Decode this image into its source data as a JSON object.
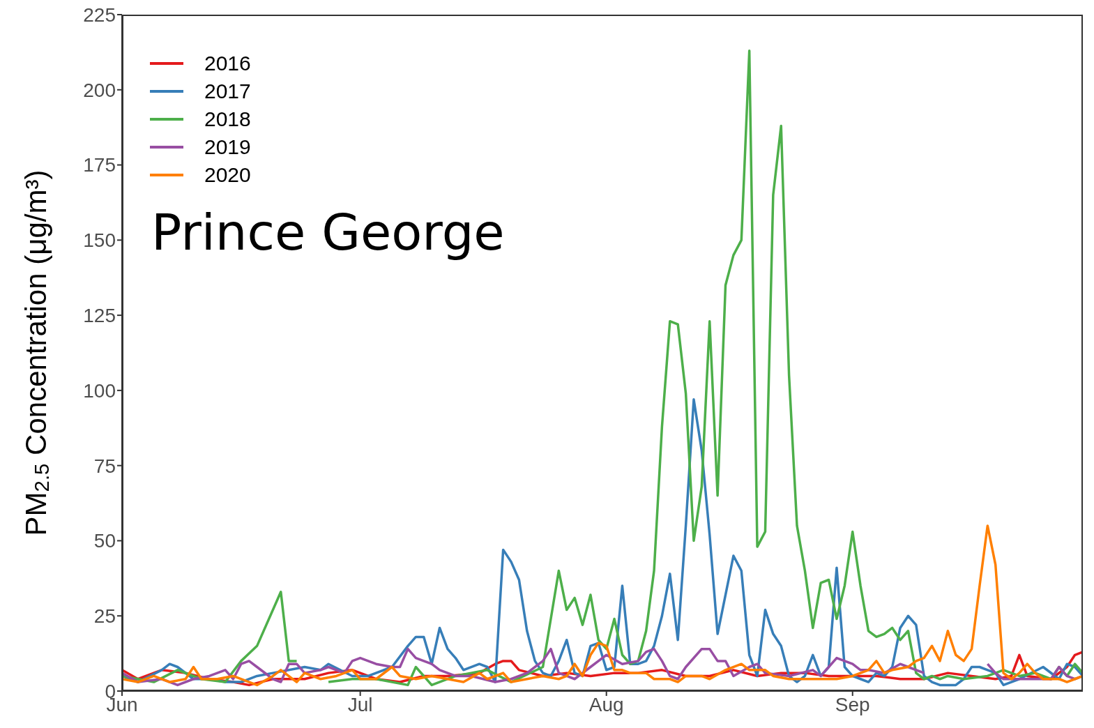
{
  "chart_data": {
    "type": "line",
    "ylabel": "PM$_{2.5}$ Concentration (μg/m³)",
    "annotations": [
      "Prince George"
    ],
    "xlim": [
      "--06-01",
      "--09-30"
    ],
    "xticks": [
      {
        "value": "--06-01",
        "label": "Jun"
      },
      {
        "value": "--07-01",
        "label": "Jul"
      },
      {
        "value": "--08-01",
        "label": "Aug"
      },
      {
        "value": "--09-01",
        "label": "Sep"
      }
    ],
    "ylim": [
      0,
      225
    ],
    "yticks": [
      0,
      25,
      50,
      75,
      100,
      125,
      150,
      175,
      200,
      225
    ],
    "grid": false,
    "legend": "top left",
    "marker": "none",
    "line_style": "solid",
    "series": [
      {
        "name": "2016",
        "color": "#e41a1c",
        "x": [
          "--06-01",
          "--06-03",
          "--06-06",
          "--06-09",
          "--06-12",
          "--06-15",
          "--06-17",
          "--06-20",
          "--06-24",
          "--06-27",
          "--06-30",
          "--07-03",
          "--07-06",
          "--07-09",
          "--07-12",
          "--07-16",
          "--07-18",
          "--07-19",
          "--07-20",
          "--07-21",
          "--07-24",
          "--07-27",
          "--07-30",
          "--08-02",
          "--08-05",
          "--08-08",
          "--08-11",
          "--08-14",
          "--08-17",
          "--08-20",
          "--08-23",
          "--08-26",
          "--08-29",
          "--09-01",
          "--09-04",
          "--09-07",
          "--09-10",
          "--09-13",
          "--09-16",
          "--09-19",
          "--09-21",
          "--09-22",
          "--09-23",
          "--09-26",
          "--09-28",
          "--09-29",
          "--09-30"
        ],
        "values": [
          7,
          4,
          7,
          6,
          4,
          3,
          2,
          4,
          4,
          6,
          7,
          4,
          3,
          5,
          5,
          6,
          9,
          10,
          10,
          7,
          5,
          6,
          5,
          6,
          6,
          7,
          5,
          5,
          7,
          5,
          6,
          6,
          5,
          5,
          5,
          4,
          4,
          6,
          5,
          4,
          5,
          12,
          5,
          4,
          8,
          12,
          13
        ]
      },
      {
        "name": "2017",
        "color": "#377eb8",
        "x": [
          "--06-01",
          "--06-03",
          "--06-06",
          "--06-07",
          "--06-08",
          "--06-10",
          "--06-12",
          "--06-14",
          "--06-16",
          "--06-18",
          "--06-20",
          "--06-24",
          "--06-26",
          "--06-27",
          "--06-30",
          "--07-02",
          "--07-05",
          "--07-07",
          "--07-08",
          "--07-09",
          "--07-10",
          "--07-11",
          "--07-12",
          "--07-13",
          "--07-14",
          "--07-16",
          "--07-17",
          "--07-18",
          "--07-19",
          "--07-20",
          "--07-21",
          "--07-22",
          "--07-23",
          "--07-24",
          "--07-25",
          "--07-26",
          "--07-27",
          "--07-28",
          "--07-29",
          "--07-30",
          "--07-31",
          "--08-01",
          "--08-02",
          "--08-03",
          "--08-04",
          "--08-05",
          "--08-06",
          "--08-07",
          "--08-08",
          "--08-09",
          "--08-10",
          "--08-11",
          "--08-12",
          "--08-13",
          "--08-14",
          "--08-15",
          "--08-16",
          "--08-17",
          "--08-18",
          "--08-19",
          "--08-20",
          "--08-21",
          "--08-22",
          "--08-23",
          "--08-24",
          "--08-25",
          "--08-26",
          "--08-27",
          "--08-28",
          "--08-29",
          "--08-30",
          "--08-31",
          "--09-01",
          "--09-02",
          "--09-03",
          "--09-04",
          "--09-05",
          "--09-06",
          "--09-07",
          "--09-08",
          "--09-09",
          "--09-10",
          "--09-11",
          "--09-12",
          "--09-13",
          "--09-14",
          "--09-15",
          "--09-16",
          "--09-17",
          "--09-18",
          "--09-19",
          "--09-20",
          "--09-21",
          "--09-22",
          "--09-25",
          "--09-27",
          "--09-28",
          "--09-29",
          "--09-30"
        ],
        "values": [
          5,
          3,
          7,
          9,
          8,
          4,
          4,
          3,
          3,
          5,
          6,
          8,
          7,
          9,
          5,
          5,
          8,
          15,
          18,
          18,
          9,
          21,
          14,
          11,
          7,
          9,
          8,
          3,
          47,
          43,
          37,
          20,
          10,
          6,
          5,
          10,
          17,
          6,
          5,
          15,
          16,
          7,
          8,
          35,
          9,
          9,
          10,
          15,
          25,
          39,
          17,
          55,
          97,
          80,
          52,
          19,
          32,
          45,
          40,
          12,
          5,
          27,
          19,
          15,
          5,
          3,
          5,
          12,
          5,
          8,
          41,
          8,
          5,
          4,
          3,
          6,
          5,
          8,
          21,
          25,
          22,
          5,
          3,
          2,
          2,
          2,
          4,
          8,
          8,
          7,
          6,
          2,
          3,
          4,
          8,
          4,
          9,
          8,
          5
        ]
      },
      {
        "name": "2018",
        "color": "#4daf4a",
        "x": [
          "--06-01",
          "--06-05",
          "--06-08",
          "--06-11",
          "--06-14",
          "--06-16",
          "--06-18",
          "--06-21",
          "--06-22",
          "--06-23",
          "--06-24",
          "--06-27",
          "--06-30",
          "--07-03",
          "--07-07",
          "--07-08",
          "--07-10",
          "--07-13",
          "--07-17",
          "--07-20",
          "--07-24",
          "--07-26",
          "--07-27",
          "--07-28",
          "--07-29",
          "--07-30",
          "--07-31",
          "--08-01",
          "--08-02",
          "--08-03",
          "--08-04",
          "--08-05",
          "--08-06",
          "--08-07",
          "--08-08",
          "--08-09",
          "--08-10",
          "--08-11",
          "--08-12",
          "--08-13",
          "--08-14",
          "--08-15",
          "--08-16",
          "--08-17",
          "--08-18",
          "--08-19",
          "--08-20",
          "--08-21",
          "--08-22",
          "--08-23",
          "--08-24",
          "--08-25",
          "--08-26",
          "--08-27",
          "--08-28",
          "--08-29",
          "--08-30",
          "--08-31",
          "--09-01",
          "--09-02",
          "--09-03",
          "--09-04",
          "--09-05",
          "--09-06",
          "--09-07",
          "--09-08",
          "--09-09",
          "--09-10",
          "--09-11",
          "--09-12",
          "--09-13",
          "--09-15",
          "--09-18",
          "--09-20",
          "--09-22",
          "--09-24",
          "--09-26",
          "--09-27",
          "--09-28",
          "--09-29",
          "--09-30"
        ],
        "values": [
          5,
          3,
          7,
          4,
          3,
          10,
          15,
          33,
          10,
          10,
          null,
          3,
          4,
          4,
          2,
          8,
          2,
          5,
          7,
          3,
          8,
          40,
          27,
          31,
          22,
          32,
          17,
          14,
          24,
          12,
          9,
          10,
          20,
          40,
          88,
          123,
          122,
          99,
          50,
          68,
          123,
          65,
          135,
          145,
          150,
          213,
          48,
          53,
          165,
          188,
          105,
          55,
          40,
          21,
          36,
          37,
          24,
          35,
          53,
          35,
          20,
          18,
          19,
          21,
          17,
          20,
          6,
          4,
          5,
          4,
          5,
          4,
          5,
          7,
          5,
          6,
          4,
          8,
          5,
          9,
          6
        ]
      },
      {
        "name": "2019",
        "color": "#984ea3",
        "x": [
          "--06-01",
          "--06-03",
          "--06-06",
          "--06-08",
          "--06-10",
          "--06-12",
          "--06-14",
          "--06-15",
          "--06-16",
          "--06-17",
          "--06-18",
          "--06-20",
          "--06-21",
          "--06-22",
          "--06-23",
          "--06-24",
          "--06-26",
          "--06-27",
          "--06-29",
          "--06-30",
          "--07-01",
          "--07-03",
          "--07-05",
          "--07-06",
          "--07-07",
          "--07-08",
          "--07-10",
          "--07-11",
          "--07-13",
          "--07-15",
          "--07-18",
          "--07-20",
          "--07-22",
          "--07-24",
          "--07-25",
          "--07-26",
          "--07-27",
          "--07-28",
          "--07-30",
          "--07-31",
          "--08-01",
          "--08-03",
          "--08-05",
          "--08-06",
          "--08-07",
          "--08-08",
          "--08-09",
          "--08-10",
          "--08-11",
          "--08-13",
          "--08-14",
          "--08-15",
          "--08-16",
          "--08-17",
          "--08-19",
          "--08-20",
          "--08-21",
          "--08-24",
          "--08-27",
          "--08-28",
          "--08-29",
          "--08-30",
          "--08-31",
          "--09-01",
          "--09-02",
          "--09-03",
          "--09-05",
          "--09-07",
          "--09-08",
          "--09-10",
          "--09-11",
          "--09-18",
          "--09-19",
          "--09-20",
          "--09-22",
          "--09-24",
          "--09-26",
          "--09-27",
          "--09-28",
          "--09-29",
          "--09-30"
        ],
        "values": [
          6,
          3,
          4,
          2,
          4,
          5,
          7,
          4,
          9,
          10,
          8,
          4,
          3,
          9,
          9,
          6,
          7,
          8,
          6,
          10,
          11,
          9,
          8,
          8,
          14,
          11,
          9,
          7,
          5,
          5,
          3,
          4,
          6,
          10,
          14,
          6,
          5,
          4,
          8,
          10,
          12,
          9,
          10,
          13,
          14,
          10,
          5,
          4,
          8,
          14,
          14,
          10,
          10,
          5,
          8,
          9,
          6,
          5,
          7,
          5,
          8,
          11,
          10,
          9,
          7,
          7,
          6,
          9,
          8,
          6,
          null,
          9,
          6,
          4,
          4,
          4,
          4,
          8,
          5,
          4,
          5
        ]
      },
      {
        "name": "2020",
        "color": "#ff7f00",
        "x": [
          "--06-01",
          "--06-03",
          "--06-05",
          "--06-07",
          "--06-09",
          "--06-10",
          "--06-11",
          "--06-13",
          "--06-15",
          "--06-17",
          "--06-18",
          "--06-20",
          "--06-21",
          "--06-23",
          "--06-24",
          "--06-26",
          "--06-28",
          "--06-30",
          "--07-01",
          "--07-03",
          "--07-05",
          "--07-06",
          "--07-08",
          "--07-10",
          "--07-12",
          "--07-14",
          "--07-16",
          "--07-17",
          "--07-19",
          "--07-20",
          "--07-22",
          "--07-24",
          "--07-26",
          "--07-27",
          "--07-28",
          "--07-29",
          "--07-30",
          "--07-31",
          "--08-01",
          "--08-02",
          "--08-03",
          "--08-04",
          "--08-06",
          "--08-07",
          "--08-09",
          "--08-10",
          "--08-11",
          "--08-13",
          "--08-14",
          "--08-16",
          "--08-18",
          "--08-19",
          "--08-21",
          "--08-22",
          "--08-24",
          "--08-26",
          "--08-28",
          "--08-30",
          "--09-01",
          "--09-03",
          "--09-04",
          "--09-05",
          "--09-06",
          "--09-08",
          "--09-09",
          "--09-10",
          "--09-11",
          "--09-12",
          "--09-13",
          "--09-14",
          "--09-15",
          "--09-16",
          "--09-17",
          "--09-18",
          "--09-19",
          "--09-20",
          "--09-21",
          "--09-22",
          "--09-23",
          "--09-24",
          "--09-25",
          "--09-27",
          "--09-28",
          "--09-29",
          "--09-30"
        ],
        "values": [
          4,
          3,
          5,
          3,
          4,
          8,
          4,
          4,
          5,
          3,
          2,
          5,
          7,
          3,
          6,
          4,
          5,
          7,
          4,
          4,
          8,
          5,
          4,
          5,
          4,
          3,
          6,
          4,
          6,
          3,
          4,
          5,
          4,
          5,
          9,
          5,
          12,
          16,
          15,
          7,
          7,
          6,
          6,
          4,
          4,
          3,
          5,
          5,
          4,
          7,
          9,
          7,
          7,
          5,
          4,
          4,
          4,
          4,
          5,
          7,
          10,
          6,
          7,
          8,
          10,
          11,
          15,
          10,
          20,
          12,
          10,
          14,
          35,
          55,
          42,
          6,
          4,
          6,
          9,
          6,
          4,
          4,
          3,
          4,
          5
        ]
      }
    ]
  }
}
